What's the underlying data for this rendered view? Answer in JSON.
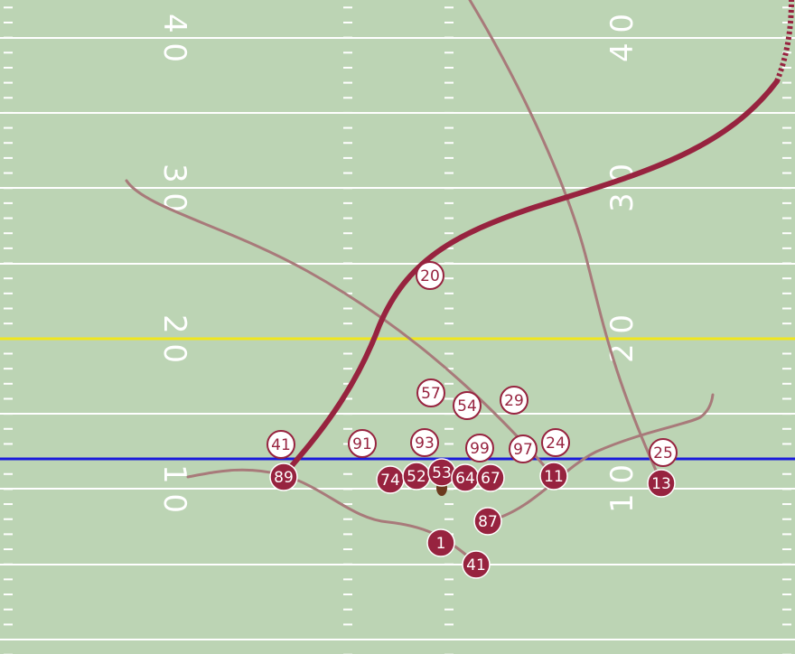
{
  "field": {
    "turf_color": "#bcd4b4",
    "line_color": "#ffffff",
    "line_of_scrimmage_color": "#1a1adc",
    "first_down_color": "#f0e61e",
    "yard_numbers_left": [
      "4 0",
      "3 0",
      "2 0",
      "1 0"
    ],
    "yard_numbers_right": [
      "4 0",
      "3 0",
      "2 0",
      "1 0"
    ]
  },
  "colors": {
    "offense": "#97233f",
    "defense_fill": "#ffffff",
    "route_primary": "#97233f",
    "route_secondary": "#a87a7a",
    "ball": "#6b3a1e"
  },
  "offense": [
    {
      "number": "89",
      "id": "89"
    },
    {
      "number": "74",
      "id": "74"
    },
    {
      "number": "52",
      "id": "52"
    },
    {
      "number": "53",
      "id": "53"
    },
    {
      "number": "64",
      "id": "64"
    },
    {
      "number": "67",
      "id": "67"
    },
    {
      "number": "11",
      "id": "11"
    },
    {
      "number": "13",
      "id": "13"
    },
    {
      "number": "87",
      "id": "87"
    },
    {
      "number": "1",
      "id": "1"
    },
    {
      "number": "41",
      "id": "41-offense"
    }
  ],
  "defense": [
    {
      "number": "41",
      "id": "41-defense"
    },
    {
      "number": "91",
      "id": "91"
    },
    {
      "number": "93",
      "id": "93"
    },
    {
      "number": "57",
      "id": "57"
    },
    {
      "number": "54",
      "id": "54"
    },
    {
      "number": "29",
      "id": "29"
    },
    {
      "number": "99",
      "id": "99"
    },
    {
      "number": "97",
      "id": "97"
    },
    {
      "number": "24",
      "id": "24"
    },
    {
      "number": "25",
      "id": "25"
    },
    {
      "number": "20",
      "id": "20"
    }
  ]
}
